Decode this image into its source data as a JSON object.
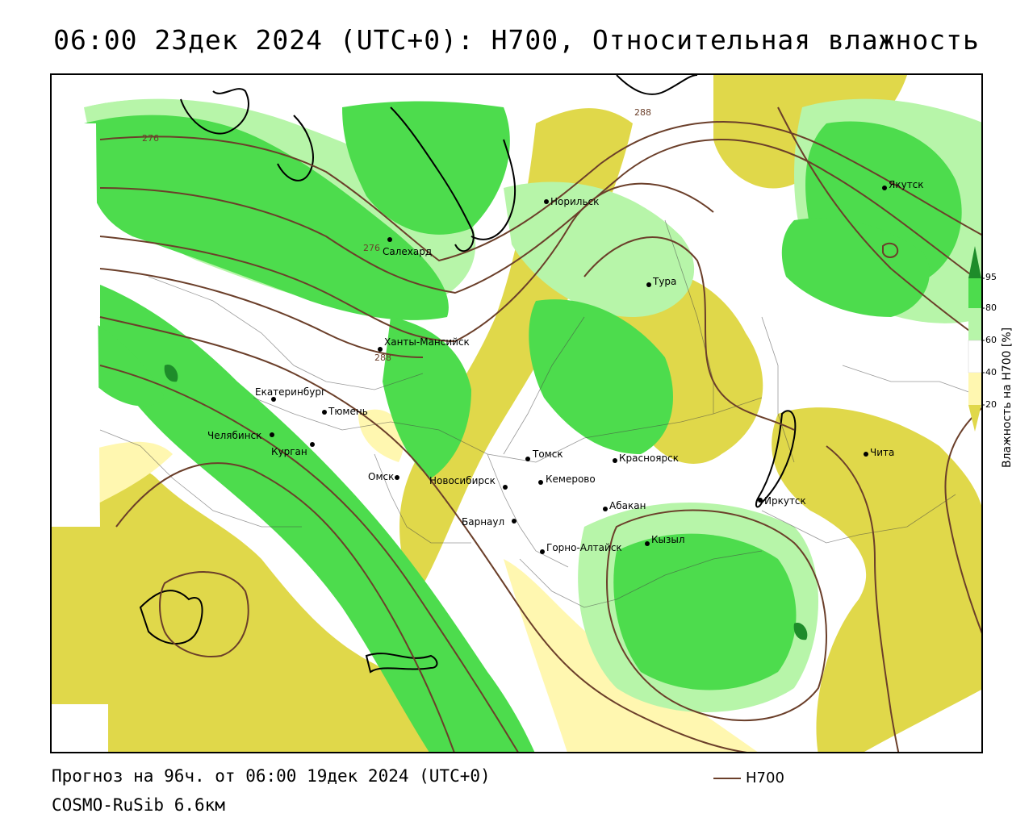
{
  "title": "06:00 23дек 2024 (UTC+0): H700, Относительная влажность",
  "footer": {
    "forecast": "Прогноз на 96ч. от 06:00 19дек 2024 (UTC+0)",
    "model": "COSMO-RuSib 6.6км"
  },
  "legend": {
    "title": "Влажность на H700 [%]",
    "ticks": [
      "95",
      "80",
      "60",
      "40",
      "20"
    ],
    "colors": {
      "above_95": "#1e8c2a",
      "80_95": "#4ddc4d",
      "60_80": "#b7f5a9",
      "40_60": "#ffffff",
      "20_40": "#fff7b0",
      "below_20": "#e0d84a"
    }
  },
  "contour_key": {
    "label": "H700",
    "color": "#6b3f2a"
  },
  "contour_labels": [
    "276",
    "276",
    "288",
    "288"
  ],
  "cities": [
    {
      "name": "Норильск"
    },
    {
      "name": "Якутск"
    },
    {
      "name": "Салехард"
    },
    {
      "name": "Тура"
    },
    {
      "name": "Ханты-Мансийск"
    },
    {
      "name": "Екатеринбург"
    },
    {
      "name": "Тюмень"
    },
    {
      "name": "Челябинск"
    },
    {
      "name": "Курган"
    },
    {
      "name": "Омск"
    },
    {
      "name": "Новосибирск"
    },
    {
      "name": "Томск"
    },
    {
      "name": "Кемерово"
    },
    {
      "name": "Красноярск"
    },
    {
      "name": "Барнаул"
    },
    {
      "name": "Абакан"
    },
    {
      "name": "Горно-Алтайск"
    },
    {
      "name": "Кызыл"
    },
    {
      "name": "Иркутск"
    },
    {
      "name": "Чита"
    }
  ]
}
